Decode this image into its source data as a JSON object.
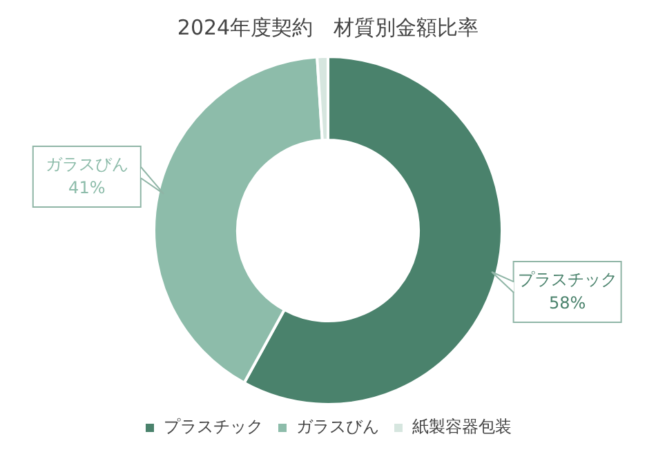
{
  "chart_data": {
    "type": "donut",
    "title": "2024年度契約　材質別金額比率",
    "categories": [
      "プラスチック",
      "ガラスびん",
      "紙製容器包装"
    ],
    "values": [
      58,
      41,
      1
    ],
    "colors": [
      "#4a826c",
      "#8dbcaa",
      "#d6e6df"
    ],
    "value_labels": [
      "58%",
      "41%",
      null
    ],
    "legend": "bottom"
  }
}
